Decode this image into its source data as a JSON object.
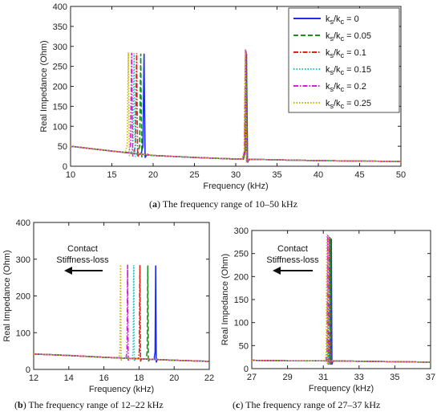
{
  "captions": {
    "a": {
      "letter": "a",
      "text": " The frequency range of 10–50 kHz"
    },
    "b": {
      "letter": "b",
      "text": " The frequency range of 12–22 kHz"
    },
    "c": {
      "letter": "c",
      "text": " The frequency range of 27–37 kHz"
    }
  },
  "series_colors": [
    "#1f2ee6",
    "#1f8f1f",
    "#e01f1f",
    "#1fc4c4",
    "#d61fd6",
    "#c8b400"
  ],
  "series_dash": [
    "solid",
    "dash",
    "dashdot",
    "dot",
    "dashdot",
    "dot"
  ],
  "chart_data": [
    {
      "id": "a",
      "type": "line",
      "xlabel": "Frequency (kHz)",
      "ylabel": "Real Impedance (Ohm)",
      "xlim": [
        10,
        50
      ],
      "ylim": [
        0,
        400
      ],
      "xticks": [
        10,
        15,
        20,
        25,
        30,
        35,
        40,
        45,
        50
      ],
      "yticks": [
        0,
        50,
        100,
        150,
        200,
        250,
        300,
        350,
        400
      ],
      "grid": false,
      "legend": "top-right",
      "legend_entries": [
        {
          "base": "k",
          "sub1": "s",
          "mid": "/k",
          "sub2": "c",
          "tail": " = 0"
        },
        {
          "base": "k",
          "sub1": "s",
          "mid": "/k",
          "sub2": "c",
          "tail": " = 0.05"
        },
        {
          "base": "k",
          "sub1": "s",
          "mid": "/k",
          "sub2": "c",
          "tail": " = 0.1"
        },
        {
          "base": "k",
          "sub1": "s",
          "mid": "/k",
          "sub2": "c",
          "tail": " = 0.15"
        },
        {
          "base": "k",
          "sub1": "s",
          "mid": "/k",
          "sub2": "c",
          "tail": " = 0.2"
        },
        {
          "base": "k",
          "sub1": "s",
          "mid": "/k",
          "sub2": "c",
          "tail": " = 0.25"
        }
      ],
      "baseline": [
        [
          10,
          50
        ],
        [
          15,
          38
        ],
        [
          20,
          27
        ],
        [
          25,
          22
        ],
        [
          30,
          18
        ],
        [
          35,
          16
        ],
        [
          40,
          14
        ],
        [
          45,
          13
        ],
        [
          50,
          12
        ]
      ],
      "series": [
        {
          "k_ratio": 0,
          "peak1_x": 18.9,
          "peak1_y": 282,
          "peak2_x": 31.3,
          "peak2_y": 282
        },
        {
          "k_ratio": 0.05,
          "peak1_x": 18.5,
          "peak1_y": 282,
          "peak2_x": 31.3,
          "peak2_y": 285
        },
        {
          "k_ratio": 0.1,
          "peak1_x": 18.0,
          "peak1_y": 283,
          "peak2_x": 31.25,
          "peak2_y": 288
        },
        {
          "k_ratio": 0.15,
          "peak1_x": 17.7,
          "peak1_y": 283,
          "peak2_x": 31.2,
          "peak2_y": 290
        },
        {
          "k_ratio": 0.2,
          "peak1_x": 17.4,
          "peak1_y": 284,
          "peak2_x": 31.2,
          "peak2_y": 292
        },
        {
          "k_ratio": 0.25,
          "peak1_x": 17.0,
          "peak1_y": 285,
          "peak2_x": 31.15,
          "peak2_y": 294
        }
      ]
    },
    {
      "id": "b",
      "type": "line",
      "xlabel": "Frequency (kHz)",
      "ylabel": "Real Impedance (Ohm)",
      "xlim": [
        12,
        22
      ],
      "ylim": [
        0,
        400
      ],
      "xticks": [
        12,
        14,
        16,
        18,
        20,
        22
      ],
      "yticks": [
        0,
        100,
        200,
        300,
        400
      ],
      "grid": false,
      "annotation": [
        "Contact",
        "Stiffness-loss"
      ],
      "baseline": [
        [
          12,
          42
        ],
        [
          14,
          38
        ],
        [
          16,
          33
        ],
        [
          18,
          29
        ],
        [
          20,
          25
        ],
        [
          22,
          22
        ]
      ],
      "series": [
        {
          "k_ratio": 0,
          "peak_x": 18.95,
          "peak_y": 283
        },
        {
          "k_ratio": 0.05,
          "peak_x": 18.5,
          "peak_y": 283
        },
        {
          "k_ratio": 0.1,
          "peak_x": 18.05,
          "peak_y": 284
        },
        {
          "k_ratio": 0.15,
          "peak_x": 17.7,
          "peak_y": 284
        },
        {
          "k_ratio": 0.2,
          "peak_x": 17.35,
          "peak_y": 285
        },
        {
          "k_ratio": 0.25,
          "peak_x": 16.95,
          "peak_y": 285
        }
      ]
    },
    {
      "id": "c",
      "type": "line",
      "xlabel": "Frequency (kHz)",
      "ylabel": "Real Impedance (Ohm)",
      "xlim": [
        27,
        37
      ],
      "ylim": [
        0,
        300
      ],
      "xticks": [
        27,
        29,
        31,
        33,
        35,
        37
      ],
      "yticks": [
        0,
        50,
        100,
        150,
        200,
        250,
        300
      ],
      "grid": false,
      "annotation": [
        "Contact",
        "Stiffness-loss"
      ],
      "baseline": [
        [
          27,
          18
        ],
        [
          29,
          17
        ],
        [
          31,
          17
        ],
        [
          33,
          16
        ],
        [
          35,
          15
        ],
        [
          37,
          14
        ]
      ],
      "series": [
        {
          "k_ratio": 0,
          "peak_x": 31.45,
          "peak_y": 282
        },
        {
          "k_ratio": 0.05,
          "peak_x": 31.4,
          "peak_y": 284
        },
        {
          "k_ratio": 0.1,
          "peak_x": 31.35,
          "peak_y": 286
        },
        {
          "k_ratio": 0.15,
          "peak_x": 31.3,
          "peak_y": 288
        },
        {
          "k_ratio": 0.2,
          "peak_x": 31.25,
          "peak_y": 290
        },
        {
          "k_ratio": 0.25,
          "peak_x": 31.2,
          "peak_y": 292
        }
      ]
    }
  ]
}
